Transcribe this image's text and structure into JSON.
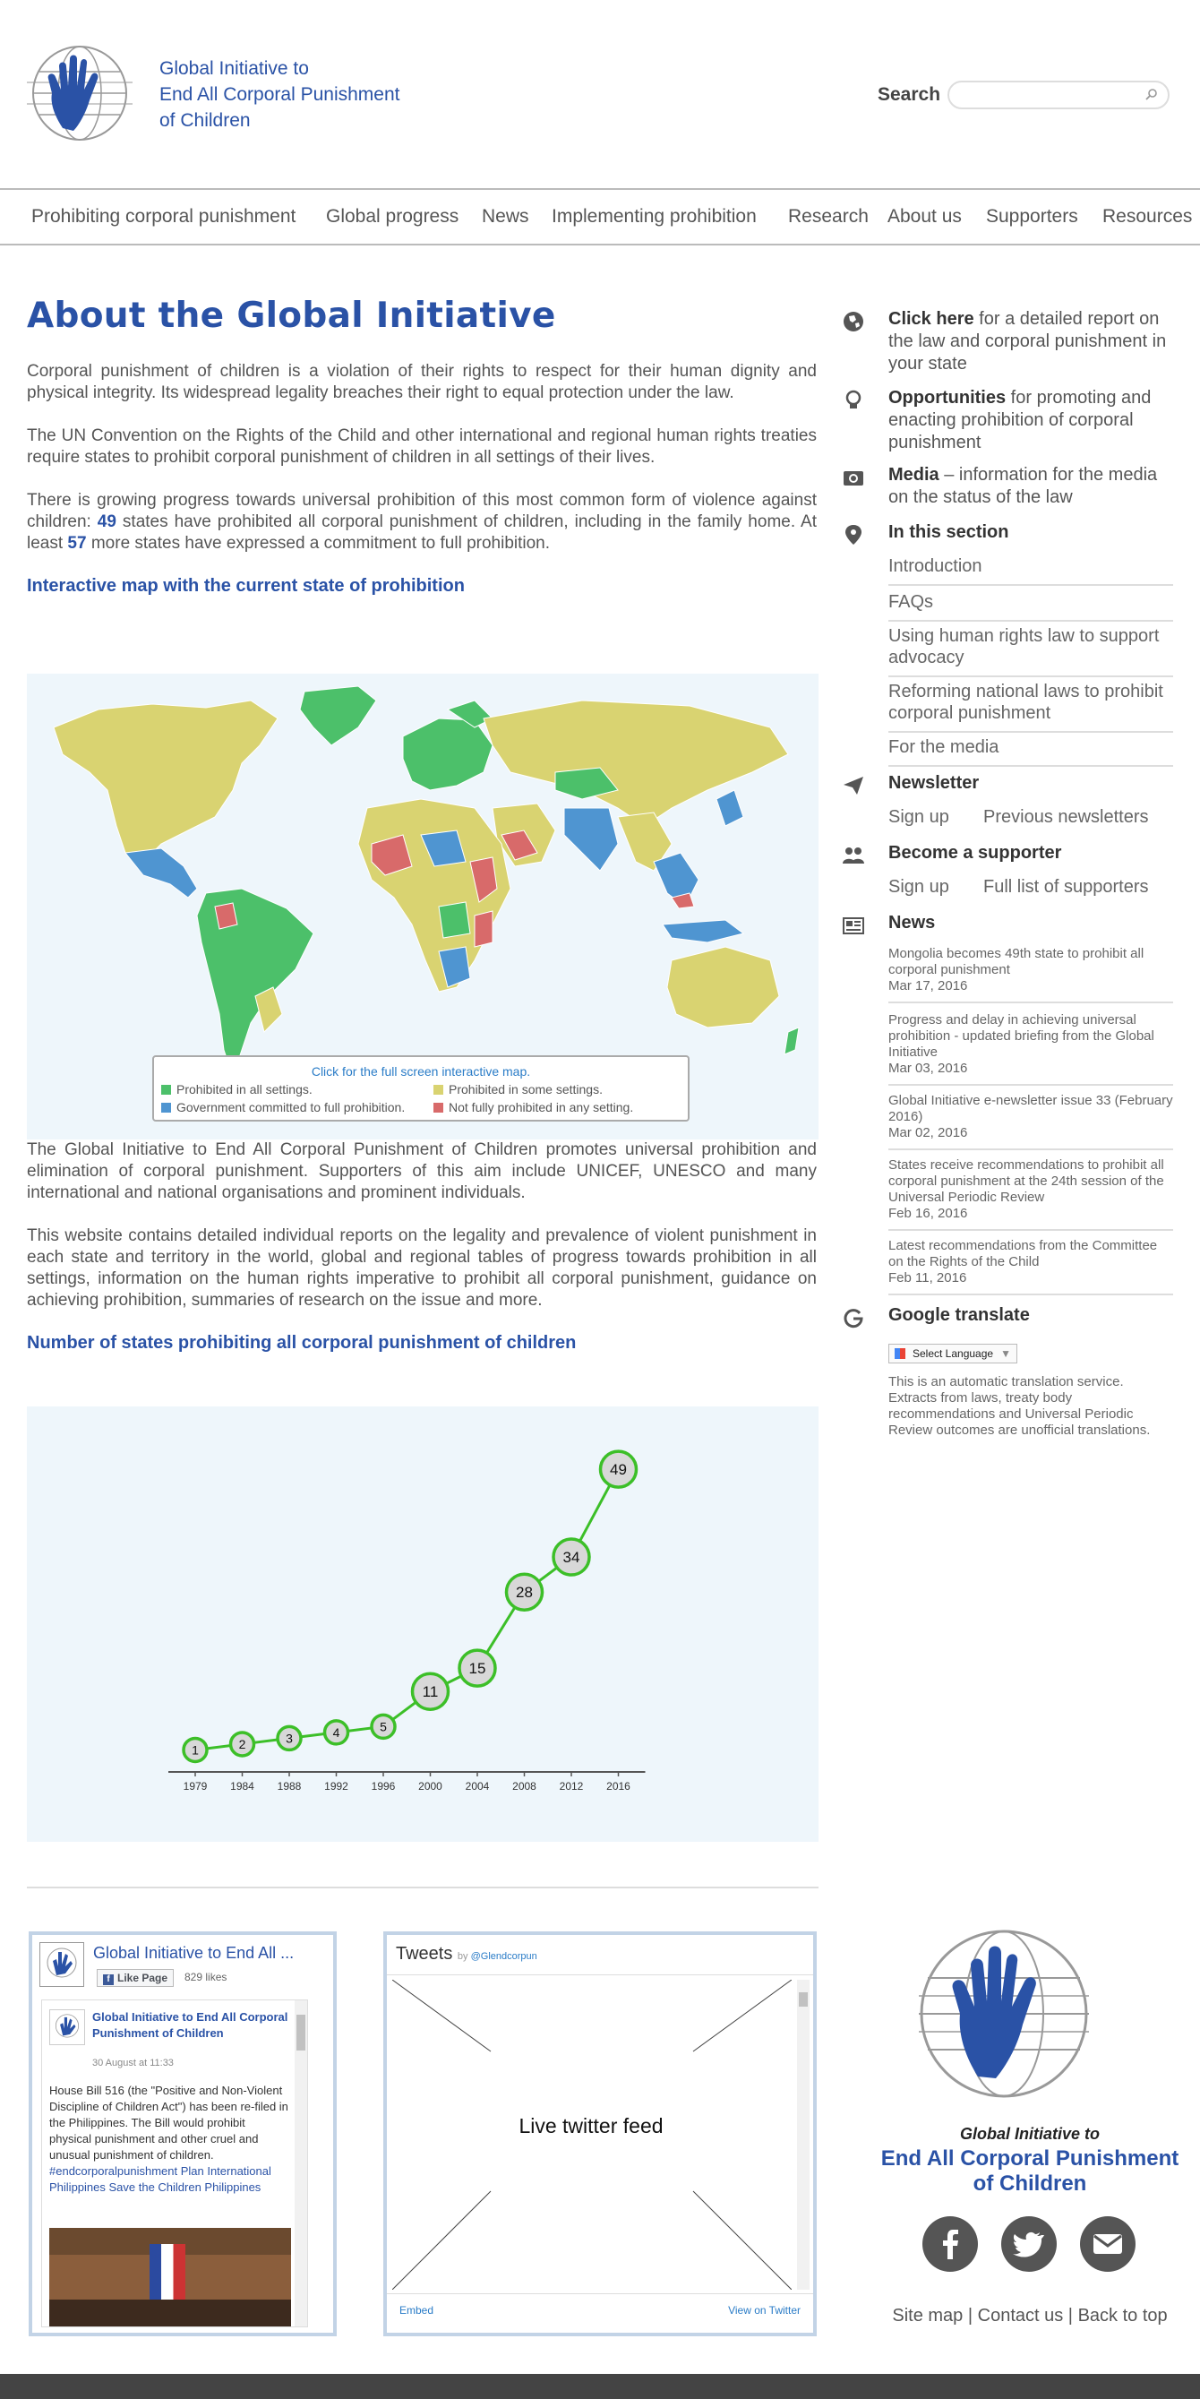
{
  "header": {
    "logo_line1": "Global Initiative to",
    "logo_line2": "End All Corporal Punishment",
    "logo_line3": "of Children",
    "search_label": "Search"
  },
  "nav": [
    "Prohibiting corporal punishment",
    "Global progress",
    "News",
    "Implementing prohibition",
    "Research",
    "About us",
    "Supporters",
    "Resources"
  ],
  "main": {
    "title": "About the Global Initiative",
    "p1": "Corporal punishment of children is a violation of their rights to respect for their human dignity and physical integrity. Its widespread legality breaches their right to equal protection under the law.",
    "p2": "The UN Convention on the Rights of the Child and other international and regional human rights treaties require states to prohibit corporal punishment of children in all settings of their lives.",
    "p3_a": "There is growing progress towards universal prohibition of this most common form of violence against children: ",
    "p3_n1": "49",
    "p3_b": " states have prohibited all corporal punishment of children, including in the family home. At least ",
    "p3_n2": "57",
    "p3_c": " more states have expressed a commitment to full prohibition.",
    "map_heading": "Interactive map with the current state of prohibition",
    "map_cta": "Click for the full screen interactive map.",
    "legend": [
      {
        "label": "Prohibited in all settings.",
        "color": "#4cc06a"
      },
      {
        "label": "Prohibited in some settings.",
        "color": "#d9d371"
      },
      {
        "label": "Government committed to full prohibition.",
        "color": "#4f95d1"
      },
      {
        "label": "Not fully prohibited in any setting.",
        "color": "#d86a6a"
      }
    ],
    "p4": "The Global Initiative to End All Corporal Punishment of Children promotes universal prohibition and elimination of corporal punishment. Supporters of this aim include UNICEF, UNESCO and many international and national organisations and prominent individuals.",
    "p5": "This website contains detailed individual reports on the legality and prevalence of violent punishment in each state and territory in the world, global and regional tables of progress towards prohibition in all settings, information on the human rights imperative to prohibit all corporal punishment, guidance on achieving prohibition, summaries of research on the issue and more.",
    "chart_heading": "Number of states prohibiting all corporal punishment of children"
  },
  "chart_data": {
    "type": "line",
    "title": "",
    "x": [
      "1979",
      "1984",
      "1988",
      "1992",
      "1996",
      "2000",
      "2004",
      "2008",
      "2012",
      "2016"
    ],
    "values": [
      1,
      2,
      3,
      4,
      5,
      11,
      15,
      28,
      34,
      49
    ],
    "xlabel": "",
    "ylabel": "",
    "ylim": [
      0,
      50
    ],
    "color": "#3cbf28",
    "grid": false
  },
  "sidebar": {
    "click_here_bold": "Click here",
    "click_here_rest": " for a detailed report on the law and corporal punishment in your state",
    "opportunities_bold": "Opportunities",
    "opportunities_rest": " for promoting and enacting prohibition of corporal punishment",
    "media_bold": "Media",
    "media_rest": " – information for the media on the status of the law",
    "section_heading": "In this section",
    "section_items": [
      "Introduction",
      "FAQs",
      "Using human rights law to support advocacy",
      "Reforming national laws to prohibit corporal punishment",
      "For the media"
    ],
    "newsletter_heading": "Newsletter",
    "newsletter_signup": "Sign up",
    "newsletter_previous": "Previous newsletters",
    "supporter_heading": "Become a supporter",
    "supporter_signup": "Sign up",
    "supporter_list": "Full list of supporters",
    "news_heading": "News",
    "news": [
      {
        "title": "Mongolia becomes 49th state to prohibit all corporal punishment",
        "date": "Mar 17, 2016"
      },
      {
        "title": "Progress and delay in achieving universal prohibition - updated briefing from the Global Initiative",
        "date": "Mar 03, 2016"
      },
      {
        "title": "Global Initiative e-newsletter issue 33 (February 2016)",
        "date": "Mar 02, 2016"
      },
      {
        "title": "States receive recommendations to prohibit all corporal punishment at the 24th session of the Universal Periodic Review",
        "date": "Feb 16, 2016"
      },
      {
        "title": "Latest recommendations from the Committee on the Rights of the Child",
        "date": "Feb 11, 2016"
      }
    ],
    "translate_heading": "Google translate",
    "translate_select": "Select Language",
    "translate_note": "This is an automatic translation service. Extracts from laws, treaty body recommendations and Universal Periodic Review outcomes are unofficial translations."
  },
  "facebook": {
    "page_name": "Global Initiative to End All ...",
    "like_label": "Like Page",
    "likes": "829 likes",
    "post_author": "Global Initiative to End All Corporal Punishment of Children",
    "post_date": "30 August at 11:33",
    "post_text": "House Bill 516 (the \"Positive and Non-Violent Discipline of Children Act\") has been re-filed in the Philippines. The Bill would prohibit physical punishment and other cruel and unusual punishment of children. ",
    "post_links": "#endcorporalpunishment Plan International Philippines Save the Children Philippines"
  },
  "twitter": {
    "title": "Tweets",
    "by": "by ",
    "handle": "@Glendcorpun",
    "placeholder": "Live twitter feed",
    "embed": "Embed",
    "view": "View on Twitter"
  },
  "footer": {
    "logo_line1": "Global Initiative to",
    "logo_line2": "End All Corporal Punishment",
    "logo_line3": "of Children",
    "site_map": "Site map",
    "contact": "Contact us",
    "back_to_top": "Back to top",
    "sep": "|"
  }
}
